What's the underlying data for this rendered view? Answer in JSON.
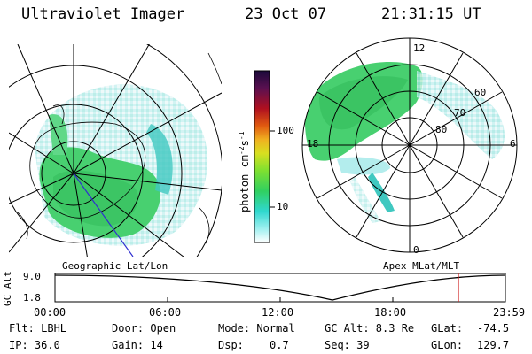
{
  "header": {
    "title": "Ultraviolet Imager",
    "date": "23 Oct 07",
    "time": "21:31:15 UT"
  },
  "panels": {
    "geographic_label": "Geographic Lat/Lon",
    "apex_label": "Apex MLat/MLT"
  },
  "polar_plot": {
    "mlt_labels": [
      "12",
      "18",
      "6",
      "0"
    ],
    "mlat_labels": [
      "60",
      "70",
      "80"
    ]
  },
  "colorbar": {
    "title": "photon cm",
    "title_sup1": "-2",
    "title_mid": "s",
    "title_sup2": "-1",
    "ticks": [
      "100",
      "10"
    ],
    "scale": "log",
    "colors": [
      "#1a0a3a",
      "#5a1050",
      "#b01020",
      "#e05a10",
      "#f0b020",
      "#d8e020",
      "#80e030",
      "#30d060",
      "#30d8d0",
      "#a0f0f0",
      "#ffffff"
    ]
  },
  "altitude_plot": {
    "ylabel": "GC Alt",
    "yticks": [
      "9.0",
      "1.8"
    ],
    "xticks": [
      "00:00",
      "06:00",
      "12:00",
      "18:00",
      "23:59"
    ],
    "current_time_marker_hours": 21.52,
    "line_color": "#000000",
    "marker_color": "#d02020"
  },
  "info": {
    "flt": "Flt: LBHL",
    "ip": "IP: 36.0",
    "door": "Door: Open",
    "gain": "Gain: 14",
    "mode": "Mode: Normal",
    "dsp_label": "Dsp:",
    "dsp_value": "0.7",
    "gcalt": "GC Alt: 8.3 Re",
    "seq": "Seq: 39",
    "glat_label": "GLat:",
    "glat_value": "-74.5",
    "glon_label": "GLon:",
    "glon_value": "129.7"
  }
}
